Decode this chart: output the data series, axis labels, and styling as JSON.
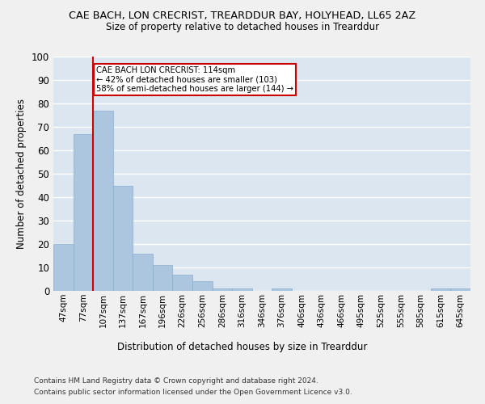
{
  "title": "CAE BACH, LON CRECRIST, TREARDDUR BAY, HOLYHEAD, LL65 2AZ",
  "subtitle": "Size of property relative to detached houses in Trearddur",
  "xlabel": "Distribution of detached houses by size in Trearddur",
  "ylabel": "Number of detached properties",
  "bar_color": "#adc6e0",
  "bar_edge_color": "#8aaecc",
  "bg_color": "#dce6f0",
  "grid_color": "#ffffff",
  "fig_bg_color": "#f0f0f0",
  "categories": [
    "47sqm",
    "77sqm",
    "107sqm",
    "137sqm",
    "167sqm",
    "196sqm",
    "226sqm",
    "256sqm",
    "286sqm",
    "316sqm",
    "346sqm",
    "376sqm",
    "406sqm",
    "436sqm",
    "466sqm",
    "495sqm",
    "525sqm",
    "555sqm",
    "585sqm",
    "615sqm",
    "645sqm"
  ],
  "values": [
    20,
    67,
    77,
    45,
    16,
    11,
    7,
    4,
    1,
    1,
    0,
    1,
    0,
    0,
    0,
    0,
    0,
    0,
    0,
    1,
    1
  ],
  "ylim": [
    0,
    100
  ],
  "yticks": [
    0,
    10,
    20,
    30,
    40,
    50,
    60,
    70,
    80,
    90,
    100
  ],
  "annotation_text": "CAE BACH LON CRECRIST: 114sqm\n← 42% of detached houses are smaller (103)\n58% of semi-detached houses are larger (144) →",
  "vline_x_index": 2,
  "vline_color": "#cc0000",
  "annotation_box_color": "#cc0000",
  "footnote1": "Contains HM Land Registry data © Crown copyright and database right 2024.",
  "footnote2": "Contains public sector information licensed under the Open Government Licence v3.0."
}
